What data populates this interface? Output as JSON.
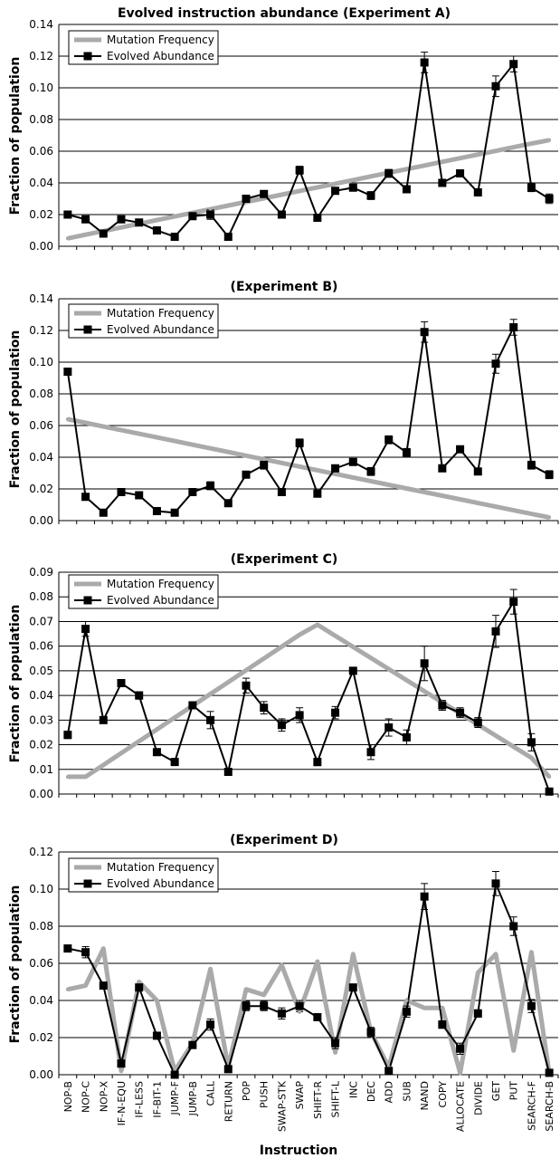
{
  "figure": {
    "title": "Evolved instruction abundance (Experiment A)",
    "xlabel": "Instruction"
  },
  "colors": {
    "mutation": "#aaaaaa",
    "evolved": "#000000",
    "grid": "#000000"
  },
  "chart_data": [
    {
      "type": "line",
      "title": "Evolved instruction abundance (Experiment A)",
      "xlabel": "",
      "ylabel": "Fraction of population",
      "ylim": [
        0,
        0.14
      ],
      "yticks": [
        "0.00",
        "0.02",
        "0.04",
        "0.06",
        "0.08",
        "0.10",
        "0.12",
        "0.14"
      ],
      "categories": [
        "NOP-B",
        "NOP-C",
        "NOP-X",
        "IF-N-EQU",
        "IF-LESS",
        "IF-BIT-1",
        "JUMP-F",
        "JUMP-B",
        "CALL",
        "RETURN",
        "POP",
        "PUSH",
        "SWAP-STK",
        "SWAP",
        "SHIFT-R",
        "SHIFT-L",
        "INC",
        "DEC",
        "ADD",
        "SUB",
        "NAND",
        "COPY",
        "ALLOCATE",
        "DIVIDE",
        "GET",
        "PUT",
        "SEARCH-F",
        "SEARCH-B"
      ],
      "legend": "top-left",
      "grid": true,
      "series": [
        {
          "name": "Mutation Frequency",
          "values": [
            0.005,
            0.0073,
            0.0096,
            0.0119,
            0.0142,
            0.0165,
            0.0188,
            0.0211,
            0.0234,
            0.0257,
            0.028,
            0.0303,
            0.0326,
            0.0349,
            0.0372,
            0.0395,
            0.0418,
            0.0441,
            0.0464,
            0.0487,
            0.051,
            0.0533,
            0.0556,
            0.0579,
            0.0602,
            0.0625,
            0.0648,
            0.067
          ]
        },
        {
          "name": "Evolved Abundance",
          "values": [
            0.02,
            0.017,
            0.008,
            0.017,
            0.015,
            0.01,
            0.006,
            0.019,
            0.02,
            0.006,
            0.03,
            0.033,
            0.02,
            0.048,
            0.018,
            0.035,
            0.037,
            0.032,
            0.046,
            0.036,
            0.116,
            0.04,
            0.046,
            0.034,
            0.101,
            0.115,
            0.037,
            0.03
          ],
          "errors": [
            0.0015,
            0.0015,
            0.0012,
            0.0015,
            0.0015,
            0.0012,
            0.0012,
            0.0015,
            0.003,
            0.0012,
            0.0018,
            0.0018,
            0.0018,
            0.0025,
            0.0015,
            0.002,
            0.0018,
            0.0025,
            0.0025,
            0.002,
            0.0065,
            0.002,
            0.002,
            0.002,
            0.0065,
            0.005,
            0.0025,
            0.003
          ]
        }
      ]
    },
    {
      "type": "line",
      "title": "(Experiment B)",
      "xlabel": "",
      "ylabel": "Fraction of population",
      "ylim": [
        0,
        0.14
      ],
      "yticks": [
        "0.00",
        "0.02",
        "0.04",
        "0.06",
        "0.08",
        "0.10",
        "0.12",
        "0.14"
      ],
      "categories": [
        "NOP-B",
        "NOP-C",
        "NOP-X",
        "IF-N-EQU",
        "IF-LESS",
        "IF-BIT-1",
        "JUMP-F",
        "JUMP-B",
        "CALL",
        "RETURN",
        "POP",
        "PUSH",
        "SWAP-STK",
        "SWAP",
        "SHIFT-R",
        "SHIFT-L",
        "INC",
        "DEC",
        "ADD",
        "SUB",
        "NAND",
        "COPY",
        "ALLOCATE",
        "DIVIDE",
        "GET",
        "PUT",
        "SEARCH-F",
        "SEARCH-B"
      ],
      "legend": "top-left",
      "grid": true,
      "series": [
        {
          "name": "Mutation Frequency",
          "values": [
            0.064,
            0.0617,
            0.0594,
            0.0571,
            0.0548,
            0.0525,
            0.0502,
            0.0479,
            0.0456,
            0.0433,
            0.041,
            0.0387,
            0.0364,
            0.0341,
            0.0318,
            0.0295,
            0.0272,
            0.0249,
            0.0226,
            0.0203,
            0.018,
            0.0157,
            0.0134,
            0.0111,
            0.0088,
            0.0065,
            0.0042,
            0.002
          ]
        },
        {
          "name": "Evolved Abundance",
          "values": [
            0.094,
            0.015,
            0.005,
            0.018,
            0.016,
            0.006,
            0.005,
            0.018,
            0.022,
            0.011,
            0.029,
            0.035,
            0.018,
            0.049,
            0.017,
            0.033,
            0.037,
            0.031,
            0.051,
            0.043,
            0.119,
            0.033,
            0.045,
            0.031,
            0.099,
            0.122,
            0.035,
            0.029
          ],
          "errors": [
            0.002,
            0.002,
            0.0012,
            0.0015,
            0.0015,
            0.0012,
            0.0012,
            0.0015,
            0.0025,
            0.0012,
            0.002,
            0.0025,
            0.0015,
            0.0025,
            0.0015,
            0.002,
            0.0018,
            0.0025,
            0.0025,
            0.0025,
            0.0065,
            0.002,
            0.002,
            0.002,
            0.006,
            0.005,
            0.0025,
            0.0025
          ]
        }
      ]
    },
    {
      "type": "line",
      "title": "(Experiment C)",
      "xlabel": "",
      "ylabel": "Fraction of population",
      "ylim": [
        0,
        0.09
      ],
      "yticks": [
        "0.00",
        "0.01",
        "0.02",
        "0.03",
        "0.04",
        "0.05",
        "0.06",
        "0.07",
        "0.08",
        "0.09"
      ],
      "categories": [
        "NOP-B",
        "NOP-C",
        "NOP-X",
        "IF-N-EQU",
        "IF-LESS",
        "IF-BIT-1",
        "JUMP-F",
        "JUMP-B",
        "CALL",
        "RETURN",
        "POP",
        "PUSH",
        "SWAP-STK",
        "SWAP",
        "SHIFT-R",
        "SHIFT-L",
        "INC",
        "DEC",
        "ADD",
        "SUB",
        "NAND",
        "COPY",
        "ALLOCATE",
        "DIVIDE",
        "GET",
        "PUT",
        "SEARCH-F",
        "SEARCH-B"
      ],
      "legend": "top-left",
      "grid": true,
      "series": [
        {
          "name": "Mutation Frequency",
          "values": [
            0.007,
            0.007,
            0.0118,
            0.0166,
            0.0214,
            0.0262,
            0.031,
            0.0358,
            0.0406,
            0.0454,
            0.0502,
            0.055,
            0.0598,
            0.0646,
            0.0687,
            0.0642,
            0.0597,
            0.0552,
            0.0507,
            0.0462,
            0.0417,
            0.0372,
            0.0327,
            0.0282,
            0.0237,
            0.0192,
            0.0147,
            0.007
          ]
        },
        {
          "name": "Evolved Abundance",
          "values": [
            0.024,
            0.067,
            0.03,
            0.045,
            0.04,
            0.017,
            0.013,
            0.036,
            0.03,
            0.009,
            0.044,
            0.035,
            0.028,
            0.032,
            0.013,
            0.033,
            0.05,
            0.017,
            0.027,
            0.023,
            0.053,
            0.036,
            0.033,
            0.029,
            0.066,
            0.078,
            0.021,
            0.001
          ],
          "errors": [
            0.0015,
            0.003,
            0.001,
            0.001,
            0.0015,
            0.001,
            0.0008,
            0.001,
            0.0035,
            0.001,
            0.003,
            0.0025,
            0.0025,
            0.003,
            0.0015,
            0.0025,
            0.0012,
            0.003,
            0.0035,
            0.003,
            0.007,
            0.002,
            0.002,
            0.002,
            0.0065,
            0.005,
            0.0035,
            0.0012
          ]
        }
      ]
    },
    {
      "type": "line",
      "title": "(Experiment D)",
      "xlabel": "Instruction",
      "ylabel": "Fraction of population",
      "ylim": [
        0,
        0.12
      ],
      "yticks": [
        "0.00",
        "0.02",
        "0.04",
        "0.06",
        "0.08",
        "0.10",
        "0.12"
      ],
      "categories": [
        "NOP-B",
        "NOP-C",
        "NOP-X",
        "IF-N-EQU",
        "IF-LESS",
        "IF-BIT-1",
        "JUMP-F",
        "JUMP-B",
        "CALL",
        "RETURN",
        "POP",
        "PUSH",
        "SWAP-STK",
        "SWAP",
        "SHIFT-R",
        "SHIFT-L",
        "INC",
        "DEC",
        "ADD",
        "SUB",
        "NAND",
        "COPY",
        "ALLOCATE",
        "DIVIDE",
        "GET",
        "PUT",
        "SEARCH-F",
        "SEARCH-B"
      ],
      "legend": "top-left",
      "grid": true,
      "series": [
        {
          "name": "Mutation Frequency",
          "values": [
            0.046,
            0.048,
            0.068,
            0.002,
            0.05,
            0.04,
            0.002,
            0.017,
            0.057,
            0.004,
            0.046,
            0.043,
            0.059,
            0.034,
            0.061,
            0.012,
            0.065,
            0.023,
            0.004,
            0.04,
            0.036,
            0.036,
            0.001,
            0.055,
            0.065,
            0.013,
            0.066,
            0.001
          ]
        },
        {
          "name": "Evolved Abundance",
          "values": [
            0.068,
            0.066,
            0.048,
            0.006,
            0.047,
            0.021,
            0.0,
            0.016,
            0.027,
            0.003,
            0.037,
            0.037,
            0.033,
            0.037,
            0.031,
            0.017,
            0.047,
            0.023,
            0.002,
            0.034,
            0.096,
            0.027,
            0.014,
            0.033,
            0.103,
            0.08,
            0.037,
            0.001
          ],
          "errors": [
            0.0015,
            0.003,
            0.0015,
            0.0015,
            0.0015,
            0.0015,
            0.001,
            0.0015,
            0.003,
            0.0015,
            0.0025,
            0.0025,
            0.003,
            0.003,
            0.0015,
            0.003,
            0.0015,
            0.0025,
            0.002,
            0.003,
            0.007,
            0.002,
            0.003,
            0.002,
            0.0065,
            0.005,
            0.0035,
            0.0015
          ]
        }
      ]
    }
  ]
}
